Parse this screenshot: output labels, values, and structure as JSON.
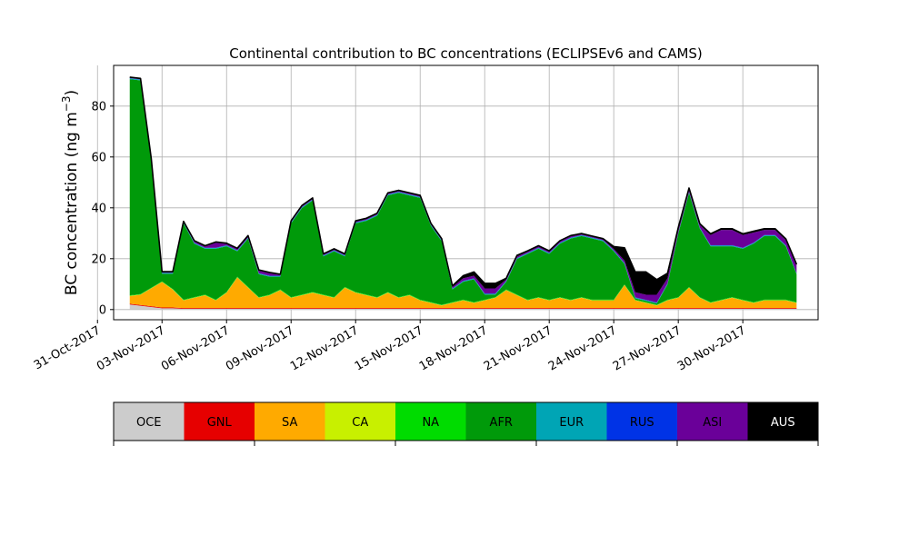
{
  "chart_data": {
    "type": "area",
    "stacked": true,
    "title": "Continental contribution to BC concentrations (ECLIPSEv6 and CAMS)",
    "ylabel": "BC concentration (ng m⁻³)",
    "ylabel_main": "BC concentration (ng m",
    "ylabel_sup": "−3",
    "ylabel_tail": ")",
    "xlabel": "",
    "grid": true,
    "ylim": [
      -4,
      96
    ],
    "yticks": [
      0,
      20,
      40,
      60,
      80
    ],
    "xlim": [
      "2017-10-31T18:00",
      "2017-12-03T12:00"
    ],
    "xticks": [
      "2017-10-31",
      "2017-11-03",
      "2017-11-06",
      "2017-11-09",
      "2017-11-12",
      "2017-11-15",
      "2017-11-18",
      "2017-11-21",
      "2017-11-24",
      "2017-11-27",
      "2017-11-30"
    ],
    "xtick_labels": [
      "31-Oct-2017",
      "03-Nov-2017",
      "06-Nov-2017",
      "09-Nov-2017",
      "12-Nov-2017",
      "15-Nov-2017",
      "18-Nov-2017",
      "21-Nov-2017",
      "24-Nov-2017",
      "27-Nov-2017",
      "30-Nov-2017"
    ],
    "x": [
      "2017-11-01T12:00",
      "2017-11-02T00:00",
      "2017-11-02T12:00",
      "2017-11-03T00:00",
      "2017-11-03T12:00",
      "2017-11-04T00:00",
      "2017-11-04T12:00",
      "2017-11-05T00:00",
      "2017-11-05T12:00",
      "2017-11-06T00:00",
      "2017-11-06T12:00",
      "2017-11-07T00:00",
      "2017-11-07T12:00",
      "2017-11-08T00:00",
      "2017-11-08T12:00",
      "2017-11-09T00:00",
      "2017-11-09T12:00",
      "2017-11-10T00:00",
      "2017-11-10T12:00",
      "2017-11-11T00:00",
      "2017-11-11T12:00",
      "2017-11-12T00:00",
      "2017-11-12T12:00",
      "2017-11-13T00:00",
      "2017-11-13T12:00",
      "2017-11-14T00:00",
      "2017-11-14T12:00",
      "2017-11-15T00:00",
      "2017-11-15T12:00",
      "2017-11-16T00:00",
      "2017-11-16T12:00",
      "2017-11-17T00:00",
      "2017-11-17T12:00",
      "2017-11-18T00:00",
      "2017-11-18T12:00",
      "2017-11-19T00:00",
      "2017-11-19T12:00",
      "2017-11-20T00:00",
      "2017-11-20T12:00",
      "2017-11-21T00:00",
      "2017-11-21T12:00",
      "2017-11-22T00:00",
      "2017-11-22T12:00",
      "2017-11-23T00:00",
      "2017-11-23T12:00",
      "2017-11-24T00:00",
      "2017-11-24T12:00",
      "2017-11-25T00:00",
      "2017-11-25T12:00",
      "2017-11-26T00:00",
      "2017-11-26T12:00",
      "2017-11-27T00:00",
      "2017-11-27T12:00",
      "2017-11-28T00:00",
      "2017-11-28T12:00",
      "2017-11-29T00:00",
      "2017-11-29T12:00",
      "2017-11-30T00:00",
      "2017-11-30T12:00",
      "2017-12-01T00:00",
      "2017-12-01T12:00",
      "2017-12-02T00:00",
      "2017-12-02T12:00"
    ],
    "series": [
      {
        "name": "OCE",
        "color": "#cccccc",
        "values": [
          2,
          1.5,
          1,
          0.5,
          0.5,
          0.3,
          0.3,
          0.3,
          0.3,
          0.3,
          0.3,
          0.3,
          0.3,
          0.3,
          0.3,
          0.3,
          0.3,
          0.3,
          0.3,
          0.3,
          0.3,
          0.3,
          0.3,
          0.3,
          0.3,
          0.3,
          0.3,
          0.3,
          0.3,
          0.3,
          0.3,
          0.3,
          0.3,
          0.3,
          0.3,
          0.3,
          0.3,
          0.3,
          0.3,
          0.3,
          0.3,
          0.3,
          0.3,
          0.3,
          0.3,
          0.3,
          0.3,
          0.3,
          0.3,
          0.3,
          0.3,
          0.3,
          0.3,
          0.3,
          0.3,
          0.3,
          0.3,
          0.3,
          0.3,
          0.3,
          0.3,
          0.3,
          0.3
        ]
      },
      {
        "name": "GNL",
        "color": "#e60000",
        "values": [
          0.3,
          0.3,
          0.3,
          0.3,
          0.3,
          0.3,
          0.3,
          0.3,
          0.3,
          0.3,
          0.3,
          0.3,
          0.3,
          0.3,
          0.3,
          0.3,
          0.3,
          0.3,
          0.3,
          0.3,
          0.3,
          0.3,
          0.3,
          0.3,
          0.3,
          0.3,
          0.3,
          0.3,
          0.3,
          0.3,
          0.3,
          0.3,
          0.3,
          0.3,
          0.3,
          0.3,
          0.3,
          0.3,
          0.3,
          0.3,
          0.3,
          0.3,
          0.3,
          0.3,
          0.3,
          0.3,
          0.3,
          0.3,
          0.3,
          0.3,
          0.3,
          0.3,
          0.3,
          0.3,
          0.3,
          0.3,
          0.3,
          0.3,
          0.3,
          0.3,
          0.3,
          0.3,
          0.3
        ]
      },
      {
        "name": "SA",
        "color": "#ffaa00",
        "values": [
          3,
          4,
          7,
          10,
          7,
          3,
          4,
          5,
          3,
          6,
          12,
          8,
          4,
          5,
          7,
          4,
          5,
          6,
          5,
          4,
          8,
          6,
          5,
          4,
          6,
          4,
          5,
          3,
          2,
          1,
          2,
          3,
          2,
          3,
          4,
          7,
          5,
          3,
          4,
          3,
          4,
          3,
          4,
          3,
          3,
          3,
          9,
          3,
          2,
          1,
          3,
          4,
          8,
          4,
          2,
          3,
          4,
          3,
          2,
          3,
          3,
          3,
          2
        ]
      },
      {
        "name": "CA",
        "color": "#c8f000",
        "values": [
          0.1,
          0.1,
          0.1,
          0.1,
          0.1,
          0.1,
          0.1,
          0.1,
          0.1,
          0.1,
          0.1,
          0.1,
          0.1,
          0.1,
          0.1,
          0.1,
          0.1,
          0.1,
          0.1,
          0.1,
          0.1,
          0.1,
          0.1,
          0.1,
          0.1,
          0.1,
          0.1,
          0.1,
          0.1,
          0.1,
          0.1,
          0.1,
          0.1,
          0.1,
          0.1,
          0.1,
          0.1,
          0.1,
          0.1,
          0.1,
          0.1,
          0.1,
          0.1,
          0.1,
          0.1,
          0.1,
          0.1,
          0.1,
          0.1,
          0.1,
          0.1,
          0.1,
          0.1,
          0.1,
          0.1,
          0.1,
          0.1,
          0.1,
          0.1,
          0.1,
          0.1,
          0.1,
          0.1
        ]
      },
      {
        "name": "NA",
        "color": "#00dc00",
        "values": [
          0.2,
          0.2,
          0.2,
          0.2,
          0.2,
          0.2,
          0.2,
          0.2,
          0.2,
          0.2,
          0.2,
          0.2,
          0.2,
          0.2,
          0.2,
          0.2,
          0.2,
          0.2,
          0.2,
          0.2,
          0.2,
          0.2,
          0.2,
          0.2,
          0.2,
          0.2,
          0.2,
          0.2,
          0.2,
          0.2,
          0.2,
          0.2,
          0.2,
          0.2,
          0.2,
          0.2,
          0.2,
          0.2,
          0.2,
          0.2,
          0.2,
          0.2,
          0.2,
          0.2,
          0.2,
          0.2,
          0.2,
          0.2,
          0.2,
          0.2,
          0.2,
          0.2,
          0.2,
          0.2,
          0.2,
          0.2,
          0.2,
          0.2,
          0.2,
          0.2,
          0.2,
          0.2,
          0.2
        ]
      },
      {
        "name": "AFR",
        "color": "#009a0a",
        "values": [
          85,
          84,
          50,
          3,
          6,
          30,
          21,
          18,
          20,
          18,
          10,
          19,
          9,
          7,
          5,
          29,
          34,
          36,
          15,
          18,
          12,
          27,
          29,
          32,
          38,
          41,
          39,
          40,
          30,
          25,
          5,
          7,
          9,
          2,
          1,
          3,
          14,
          18,
          19,
          18,
          21,
          24,
          24,
          24,
          23,
          19,
          8,
          0.5,
          0.5,
          0.5,
          6,
          25,
          37,
          27,
          22,
          21,
          20,
          20,
          23,
          25,
          25,
          21,
          11
        ]
      },
      {
        "name": "EUR",
        "color": "#00a5b5",
        "values": [
          0.3,
          0.3,
          0.3,
          0.3,
          0.3,
          0.3,
          0.3,
          0.3,
          0.3,
          0.3,
          0.3,
          0.3,
          0.3,
          0.3,
          0.3,
          0.3,
          0.3,
          0.3,
          0.3,
          0.3,
          0.3,
          0.3,
          0.3,
          0.3,
          0.3,
          0.3,
          0.3,
          0.3,
          0.3,
          0.3,
          0.3,
          0.3,
          0.3,
          0.3,
          0.3,
          0.3,
          0.3,
          0.3,
          0.3,
          0.3,
          0.3,
          0.3,
          0.3,
          0.3,
          0.3,
          0.3,
          0.3,
          0.3,
          0.3,
          0.3,
          0.3,
          0.3,
          0.3,
          0.3,
          0.3,
          0.3,
          0.3,
          0.3,
          0.3,
          0.3,
          0.3,
          0.3,
          0.3
        ]
      },
      {
        "name": "RUS",
        "color": "#0033e6",
        "values": [
          0.1,
          0.1,
          0.1,
          0.1,
          0.1,
          0.1,
          0.1,
          0.1,
          0.1,
          0.1,
          0.1,
          0.1,
          0.1,
          0.1,
          0.1,
          0.1,
          0.1,
          0.1,
          0.1,
          0.1,
          0.1,
          0.1,
          0.1,
          0.1,
          0.1,
          0.1,
          0.1,
          0.1,
          0.1,
          0.1,
          0.1,
          0.1,
          0.1,
          0.1,
          0.1,
          0.1,
          0.1,
          0.1,
          0.1,
          0.1,
          0.1,
          0.1,
          0.1,
          0.1,
          0.1,
          0.1,
          0.1,
          0.1,
          0.1,
          0.1,
          0.1,
          0.1,
          0.1,
          0.1,
          0.1,
          0.1,
          0.1,
          0.1,
          0.1,
          0.1,
          0.1,
          0.1,
          0.1
        ]
      },
      {
        "name": "ASI",
        "color": "#6a0099",
        "values": [
          0.1,
          0.1,
          0.1,
          0.1,
          0.1,
          0.1,
          0.5,
          0.5,
          2,
          0.5,
          0.5,
          0.5,
          1,
          1,
          0.3,
          0.3,
          0.3,
          0.3,
          0.3,
          0.3,
          0.3,
          0.3,
          0.3,
          0.3,
          0.3,
          0.3,
          0.3,
          0.3,
          0.3,
          0.3,
          0.5,
          1,
          1,
          2,
          2,
          0.5,
          0.5,
          0.5,
          0.5,
          0.5,
          0.5,
          0.5,
          0.3,
          0.3,
          0.3,
          0.5,
          1,
          2,
          2,
          3,
          2,
          1,
          1,
          1,
          4,
          6,
          6,
          5,
          4,
          2,
          2,
          2,
          3
        ]
      },
      {
        "name": "AUS",
        "color": "#000000",
        "values": [
          0.3,
          0.3,
          0.3,
          0.3,
          0.3,
          0.3,
          0.3,
          0.3,
          0.3,
          0.3,
          0.3,
          0.3,
          0.3,
          0.3,
          0.3,
          0.3,
          0.3,
          0.3,
          0.3,
          0.3,
          0.3,
          0.3,
          0.3,
          0.3,
          0.3,
          0.3,
          0.3,
          0.3,
          0.3,
          0.3,
          0.5,
          1,
          1.5,
          2,
          2,
          0.5,
          0.5,
          0.3,
          0.3,
          0.3,
          0.3,
          0.3,
          0.3,
          0.3,
          0.3,
          1,
          5,
          8,
          9,
          6,
          2,
          1,
          0.5,
          0.5,
          0.5,
          0.5,
          0.5,
          0.5,
          0.5,
          0.5,
          0.5,
          0.5,
          0.5
        ]
      }
    ]
  }
}
